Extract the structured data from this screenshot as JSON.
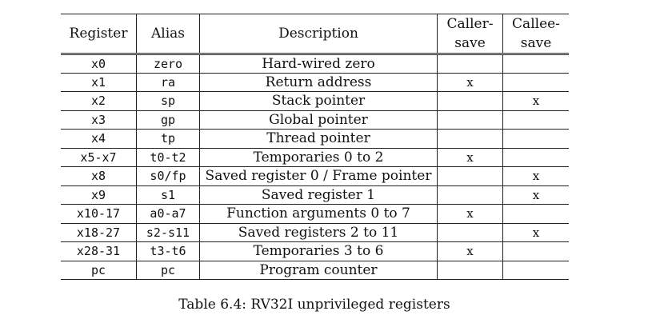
{
  "table": {
    "headers": {
      "register": "Register",
      "alias": "Alias",
      "description": "Description",
      "caller_line1": "Caller-",
      "caller_line2": "save",
      "callee_line1": "Callee-",
      "callee_line2": "save"
    },
    "rows": [
      {
        "register": "x0",
        "alias": "zero",
        "description": "Hard-wired zero",
        "caller": "",
        "callee": ""
      },
      {
        "register": "x1",
        "alias": "ra",
        "description": "Return address",
        "caller": "x",
        "callee": ""
      },
      {
        "register": "x2",
        "alias": "sp",
        "description": "Stack pointer",
        "caller": "",
        "callee": "x"
      },
      {
        "register": "x3",
        "alias": "gp",
        "description": "Global pointer",
        "caller": "",
        "callee": ""
      },
      {
        "register": "x4",
        "alias": "tp",
        "description": "Thread pointer",
        "caller": "",
        "callee": ""
      },
      {
        "register": "x5-x7",
        "alias": "t0-t2",
        "description": "Temporaries 0 to 2",
        "caller": "x",
        "callee": ""
      },
      {
        "register": "x8",
        "alias": "s0/fp",
        "description": "Saved register 0 / Frame pointer",
        "caller": "",
        "callee": "x"
      },
      {
        "register": "x9",
        "alias": "s1",
        "description": "Saved register 1",
        "caller": "",
        "callee": "x"
      },
      {
        "register": "x10-17",
        "alias": "a0-a7",
        "description": "Function arguments 0 to 7",
        "caller": "x",
        "callee": ""
      },
      {
        "register": "x18-27",
        "alias": "s2-s11",
        "description": "Saved registers 2 to 11",
        "caller": "",
        "callee": "x"
      },
      {
        "register": "x28-31",
        "alias": "t3-t6",
        "description": "Temporaries 3 to 6",
        "caller": "x",
        "callee": ""
      },
      {
        "register": "pc",
        "alias": "pc",
        "description": "Program counter",
        "caller": "",
        "callee": ""
      }
    ]
  },
  "caption": "Table 6.4: RV32I unprivileged registers"
}
